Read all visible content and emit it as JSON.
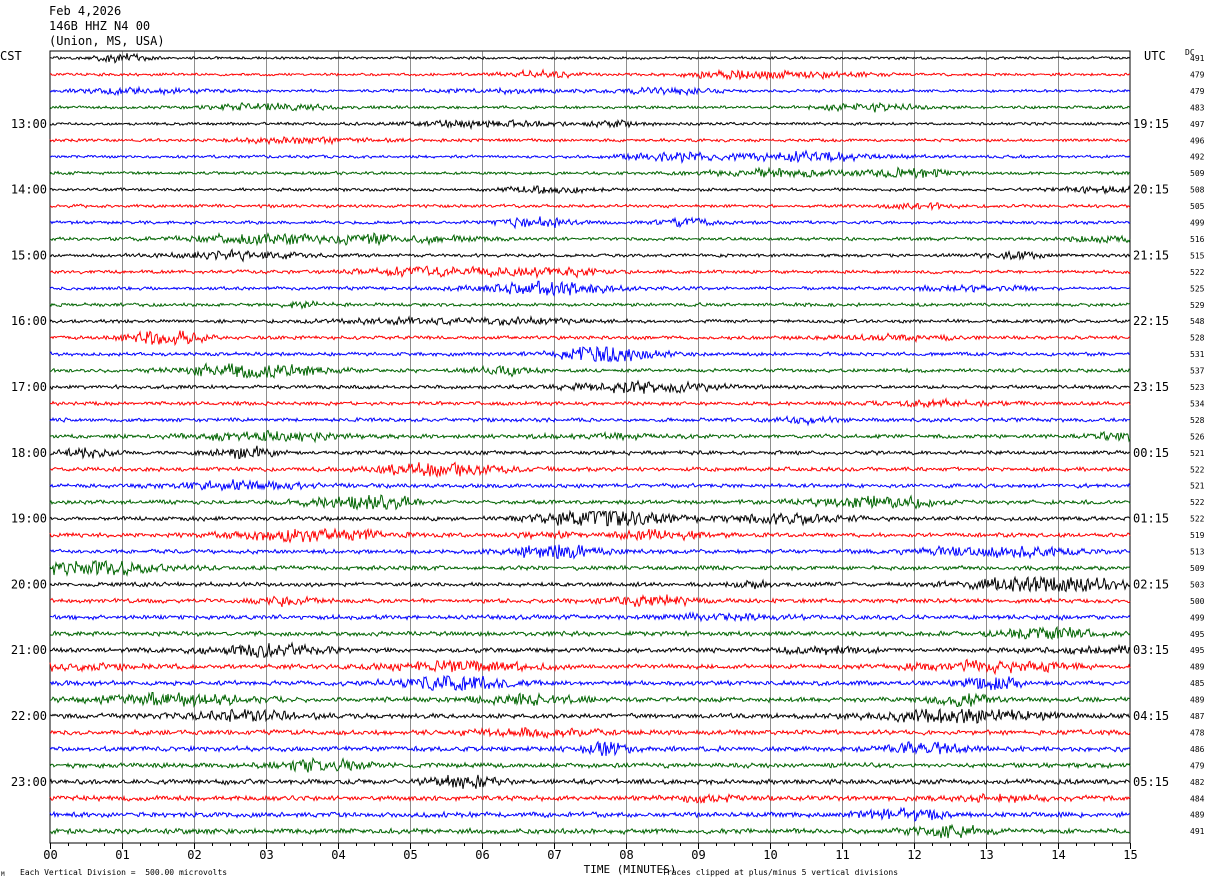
{
  "header": {
    "date": "Feb 4,2026",
    "station": "146B HHZ N4 00",
    "location": "(Union, MS, USA)"
  },
  "labels": {
    "left_tz": "CST",
    "right_tz": "UTC",
    "dc": "DC",
    "footer_scale": "Each Vertical Division =  500.00 microvolts",
    "footer_clip": "Traces clipped at plus/minus 5 vertical divisions",
    "mark": "M"
  },
  "chart_data": {
    "type": "line",
    "xlabel": "TIME (MINUTES)",
    "xlim": [
      0,
      15
    ],
    "x_ticks": [
      "00",
      "01",
      "02",
      "03",
      "04",
      "05",
      "06",
      "07",
      "08",
      "09",
      "10",
      "11",
      "12",
      "13",
      "14",
      "15"
    ],
    "trace_colors": [
      "#000000",
      "#ff0000",
      "#0000ff",
      "#006400"
    ],
    "left_hour_labels": [
      "13:00",
      "14:00",
      "15:00",
      "16:00",
      "17:00",
      "18:00",
      "19:00",
      "20:00",
      "21:00",
      "22:00",
      "23:00"
    ],
    "right_hour_labels": [
      "19:15",
      "20:15",
      "21:15",
      "22:15",
      "23:15",
      "00:15",
      "01:15",
      "02:15",
      "03:15",
      "04:15",
      "05:15"
    ],
    "dc_offsets": [
      491,
      479,
      479,
      483,
      497,
      496,
      492,
      509,
      508,
      505,
      499,
      516,
      515,
      522,
      525,
      529,
      548,
      528,
      531,
      537,
      523,
      534,
      528,
      526,
      521,
      522,
      521,
      522,
      522,
      519,
      513,
      509,
      503,
      500,
      499,
      495,
      495,
      489,
      485,
      489,
      487,
      478,
      486,
      479,
      482,
      484,
      489,
      491
    ]
  }
}
